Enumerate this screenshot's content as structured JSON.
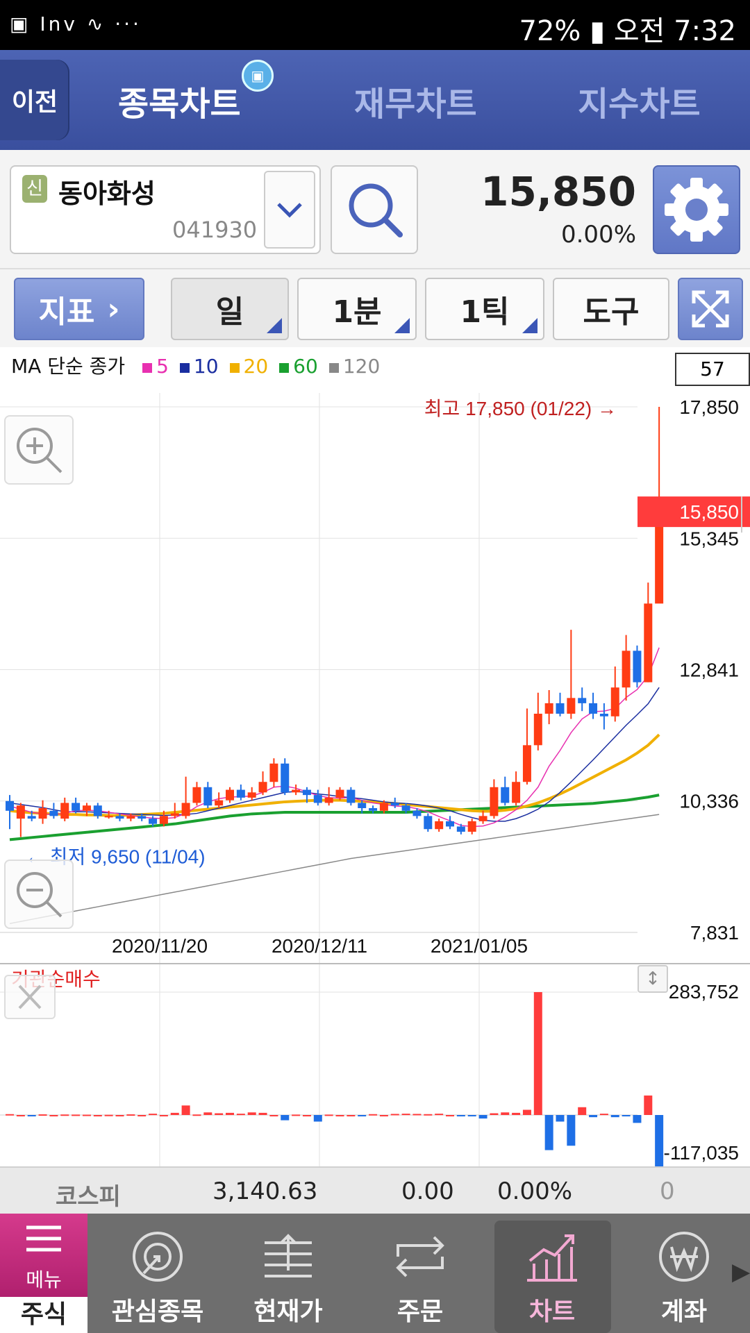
{
  "status_bar": {
    "left_icons": "▣ Inv ∿ ···",
    "battery": "72%",
    "time": "오전 7:32"
  },
  "header": {
    "back_label": "이전",
    "tabs": [
      "종목차트",
      "재무차트",
      "지수차트"
    ]
  },
  "stock": {
    "badge": "신",
    "name": "동아화성",
    "code": "041930",
    "price": "15,850",
    "change": "0.00%"
  },
  "toolbar": {
    "indicator_label": "지표",
    "period": "일",
    "minute": "1분",
    "tick": "1틱",
    "tools": "도구"
  },
  "legend": {
    "prefix": "MA 단순 종가",
    "items": [
      {
        "label": "5",
        "color": "#e830b0"
      },
      {
        "label": "10",
        "color": "#1a2ea0"
      },
      {
        "label": "20",
        "color": "#f0b000"
      },
      {
        "label": "60",
        "color": "#1aa030"
      },
      {
        "label": "120",
        "color": "#888888"
      }
    ]
  },
  "count": "57",
  "chart_data": {
    "type": "candlestick",
    "price_axis_labels": [
      "17,850",
      "15,345",
      "12,841",
      "10,336",
      "7,831"
    ],
    "current_price_label": "15,850",
    "date_labels": [
      "2020/11/20",
      "2020/12/11",
      "2021/01/05"
    ],
    "high_annotation": "최고 17,850 (01/22) →",
    "low_annotation": "← 최저 9,650 (11/04)",
    "ylim": [
      7831,
      17850
    ],
    "candles": [
      [
        10336,
        10150,
        10450,
        9800
      ],
      [
        10000,
        10250,
        10300,
        9650
      ],
      [
        10050,
        10000,
        10150,
        9950
      ],
      [
        10000,
        10200,
        10350,
        9900
      ],
      [
        10150,
        10050,
        10300,
        10000
      ],
      [
        10000,
        10300,
        10400,
        9950
      ],
      [
        10300,
        10150,
        10400,
        10100
      ],
      [
        10150,
        10250,
        10300,
        10050
      ],
      [
        10250,
        10050,
        10300,
        10000
      ],
      [
        10050,
        10050,
        10150,
        10000
      ],
      [
        10050,
        10000,
        10100,
        9950
      ],
      [
        10000,
        10050,
        10100,
        9950
      ],
      [
        10050,
        10000,
        10100,
        9950
      ],
      [
        10000,
        9900,
        10050,
        9850
      ],
      [
        9900,
        10050,
        10150,
        9850
      ],
      [
        10050,
        10100,
        10300,
        10000
      ],
      [
        10050,
        10300,
        10800,
        10000
      ],
      [
        10300,
        10600,
        10700,
        10250
      ],
      [
        10600,
        10250,
        10700,
        10200
      ],
      [
        10250,
        10350,
        10500,
        10200
      ],
      [
        10350,
        10550,
        10600,
        10300
      ],
      [
        10550,
        10400,
        10650,
        10350
      ],
      [
        10400,
        10500,
        10600,
        10350
      ],
      [
        10500,
        10700,
        10900,
        10450
      ],
      [
        10700,
        11050,
        11150,
        10600
      ],
      [
        11050,
        10500,
        11150,
        10450
      ],
      [
        10500,
        10550,
        10650,
        10450
      ],
      [
        10550,
        10450,
        10600,
        10300
      ],
      [
        10450,
        10300,
        10550,
        10250
      ],
      [
        10300,
        10400,
        10600,
        10250
      ],
      [
        10400,
        10550,
        10600,
        10350
      ],
      [
        10550,
        10300,
        10600,
        10250
      ],
      [
        10300,
        10200,
        10350,
        10100
      ],
      [
        10200,
        10150,
        10250,
        10100
      ],
      [
        10150,
        10300,
        10350,
        10100
      ],
      [
        10300,
        10250,
        10400,
        10200
      ],
      [
        10250,
        10150,
        10300,
        10100
      ],
      [
        10150,
        10050,
        10200,
        10000
      ],
      [
        10050,
        9800,
        10100,
        9750
      ],
      [
        9800,
        9950,
        10000,
        9750
      ],
      [
        9950,
        9850,
        10050,
        9800
      ],
      [
        9850,
        9750,
        9900,
        9700
      ],
      [
        9750,
        9950,
        10000,
        9700
      ],
      [
        9950,
        10050,
        10150,
        9900
      ],
      [
        10050,
        10600,
        10750,
        10000
      ],
      [
        10600,
        10300,
        10800,
        10250
      ],
      [
        10300,
        10700,
        10900,
        10250
      ],
      [
        10700,
        11400,
        12100,
        10650
      ],
      [
        11400,
        12000,
        12400,
        11300
      ],
      [
        12000,
        12200,
        12450,
        11800
      ],
      [
        12200,
        12000,
        12400,
        11950
      ],
      [
        12000,
        12300,
        13600,
        11900
      ],
      [
        12300,
        12200,
        12500,
        12050
      ],
      [
        12200,
        12000,
        12400,
        11900
      ],
      [
        12000,
        11950,
        12200,
        11700
      ],
      [
        11950,
        12500,
        12900,
        11850
      ],
      [
        12500,
        13200,
        13500,
        12250
      ],
      [
        13200,
        12600,
        13300,
        12500
      ],
      [
        12600,
        14100,
        14500,
        12600
      ],
      [
        14100,
        15850,
        17850,
        14700
      ]
    ],
    "ma5": [
      10240,
      10180,
      10120,
      10090,
      10080,
      10100,
      10150,
      10160,
      10150,
      10120,
      10090,
      10060,
      10030,
      10010,
      10000,
      10020,
      10100,
      10230,
      10320,
      10380,
      10410,
      10420,
      10430,
      10500,
      10600,
      10620,
      10580,
      10510,
      10440,
      10400,
      10390,
      10400,
      10350,
      10300,
      10270,
      10240,
      10230,
      10190,
      10130,
      10040,
      9960,
      9870,
      9850,
      9860,
      9920,
      10030,
      10170,
      10350,
      10600,
      11000,
      11300,
      11640,
      11900,
      12040,
      12050,
      12100,
      12310,
      12460,
      12720,
      13260
    ],
    "ma10": [
      10300,
      10270,
      10240,
      10210,
      10170,
      10130,
      10130,
      10130,
      10120,
      10110,
      10100,
      10090,
      10080,
      10070,
      10060,
      10070,
      10080,
      10100,
      10150,
      10200,
      10250,
      10300,
      10350,
      10400,
      10450,
      10500,
      10520,
      10500,
      10470,
      10450,
      10420,
      10400,
      10380,
      10350,
      10320,
      10300,
      10290,
      10270,
      10240,
      10200,
      10150,
      10080,
      10020,
      9970,
      9950,
      9950,
      10000,
      10080,
      10180,
      10320,
      10500,
      10700,
      10910,
      11120,
      11340,
      11560,
      11780,
      11980,
      12190,
      12500
    ],
    "ma20": [
      10150,
      10130,
      10110,
      10100,
      10090,
      10080,
      10080,
      10070,
      10070,
      10060,
      10060,
      10070,
      10080,
      10090,
      10100,
      10120,
      10140,
      10160,
      10180,
      10200,
      10220,
      10240,
      10260,
      10280,
      10300,
      10320,
      10330,
      10340,
      10350,
      10350,
      10350,
      10340,
      10330,
      10320,
      10300,
      10290,
      10270,
      10250,
      10230,
      10210,
      10190,
      10170,
      10150,
      10140,
      10140,
      10160,
      10190,
      10240,
      10300,
      10380,
      10470,
      10570,
      10680,
      10790,
      10900,
      11010,
      11120,
      11250,
      11400,
      11600
    ],
    "ma60": [
      9600,
      9620,
      9640,
      9660,
      9680,
      9700,
      9720,
      9740,
      9760,
      9780,
      9800,
      9820,
      9840,
      9860,
      9880,
      9900,
      9930,
      9960,
      9990,
      10020,
      10050,
      10070,
      10090,
      10100,
      10110,
      10120,
      10120,
      10120,
      10120,
      10120,
      10120,
      10120,
      10120,
      10120,
      10120,
      10120,
      10120,
      10130,
      10140,
      10150,
      10160,
      10170,
      10180,
      10190,
      10200,
      10210,
      10220,
      10230,
      10240,
      10250,
      10260,
      10270,
      10280,
      10290,
      10310,
      10330,
      10350,
      10380,
      10410,
      10450
    ],
    "ma120": [
      8000,
      8040,
      8080,
      8120,
      8160,
      8200,
      8240,
      8280,
      8320,
      8360,
      8400,
      8440,
      8480,
      8520,
      8560,
      8600,
      8640,
      8680,
      8720,
      8760,
      8800,
      8840,
      8880,
      8920,
      8960,
      9000,
      9040,
      9080,
      9120,
      9160,
      9200,
      9240,
      9270,
      9300,
      9330,
      9360,
      9390,
      9420,
      9450,
      9480,
      9510,
      9540,
      9570,
      9600,
      9630,
      9660,
      9690,
      9720,
      9750,
      9780,
      9810,
      9840,
      9870,
      9900,
      9930,
      9960,
      9990,
      10020,
      10050,
      10080
    ]
  },
  "sub_chart": {
    "title": "기관순매수",
    "axis_labels": [
      "283,752",
      "-117,035"
    ],
    "ylim": [
      -117035,
      283752
    ],
    "values": [
      2000,
      0,
      -3000,
      1500,
      0,
      1200,
      1000,
      800,
      0,
      500,
      0,
      1500,
      0,
      3000,
      0,
      5000,
      22000,
      1200,
      6000,
      4000,
      5000,
      3000,
      6000,
      5000,
      0,
      -12000,
      1000,
      0,
      -15000,
      1000,
      0,
      0,
      -2000,
      2000,
      0,
      2500,
      3000,
      2500,
      2000,
      3000,
      0,
      -3000,
      -2000,
      -8000,
      4000,
      6000,
      5000,
      12000,
      283752,
      -80000,
      -15000,
      -70000,
      18000,
      -5000,
      3000,
      -5000,
      -3000,
      -18000,
      45000,
      -117035
    ]
  },
  "index_bar": {
    "name": "코스피",
    "value": "3,140.63",
    "change": "0.00",
    "rate": "0.00%",
    "volume": "0"
  },
  "nav": {
    "menu": "메뉴",
    "stock": "주식",
    "items": [
      "관심종목",
      "현재가",
      "주문",
      "차트",
      "계좌"
    ]
  }
}
